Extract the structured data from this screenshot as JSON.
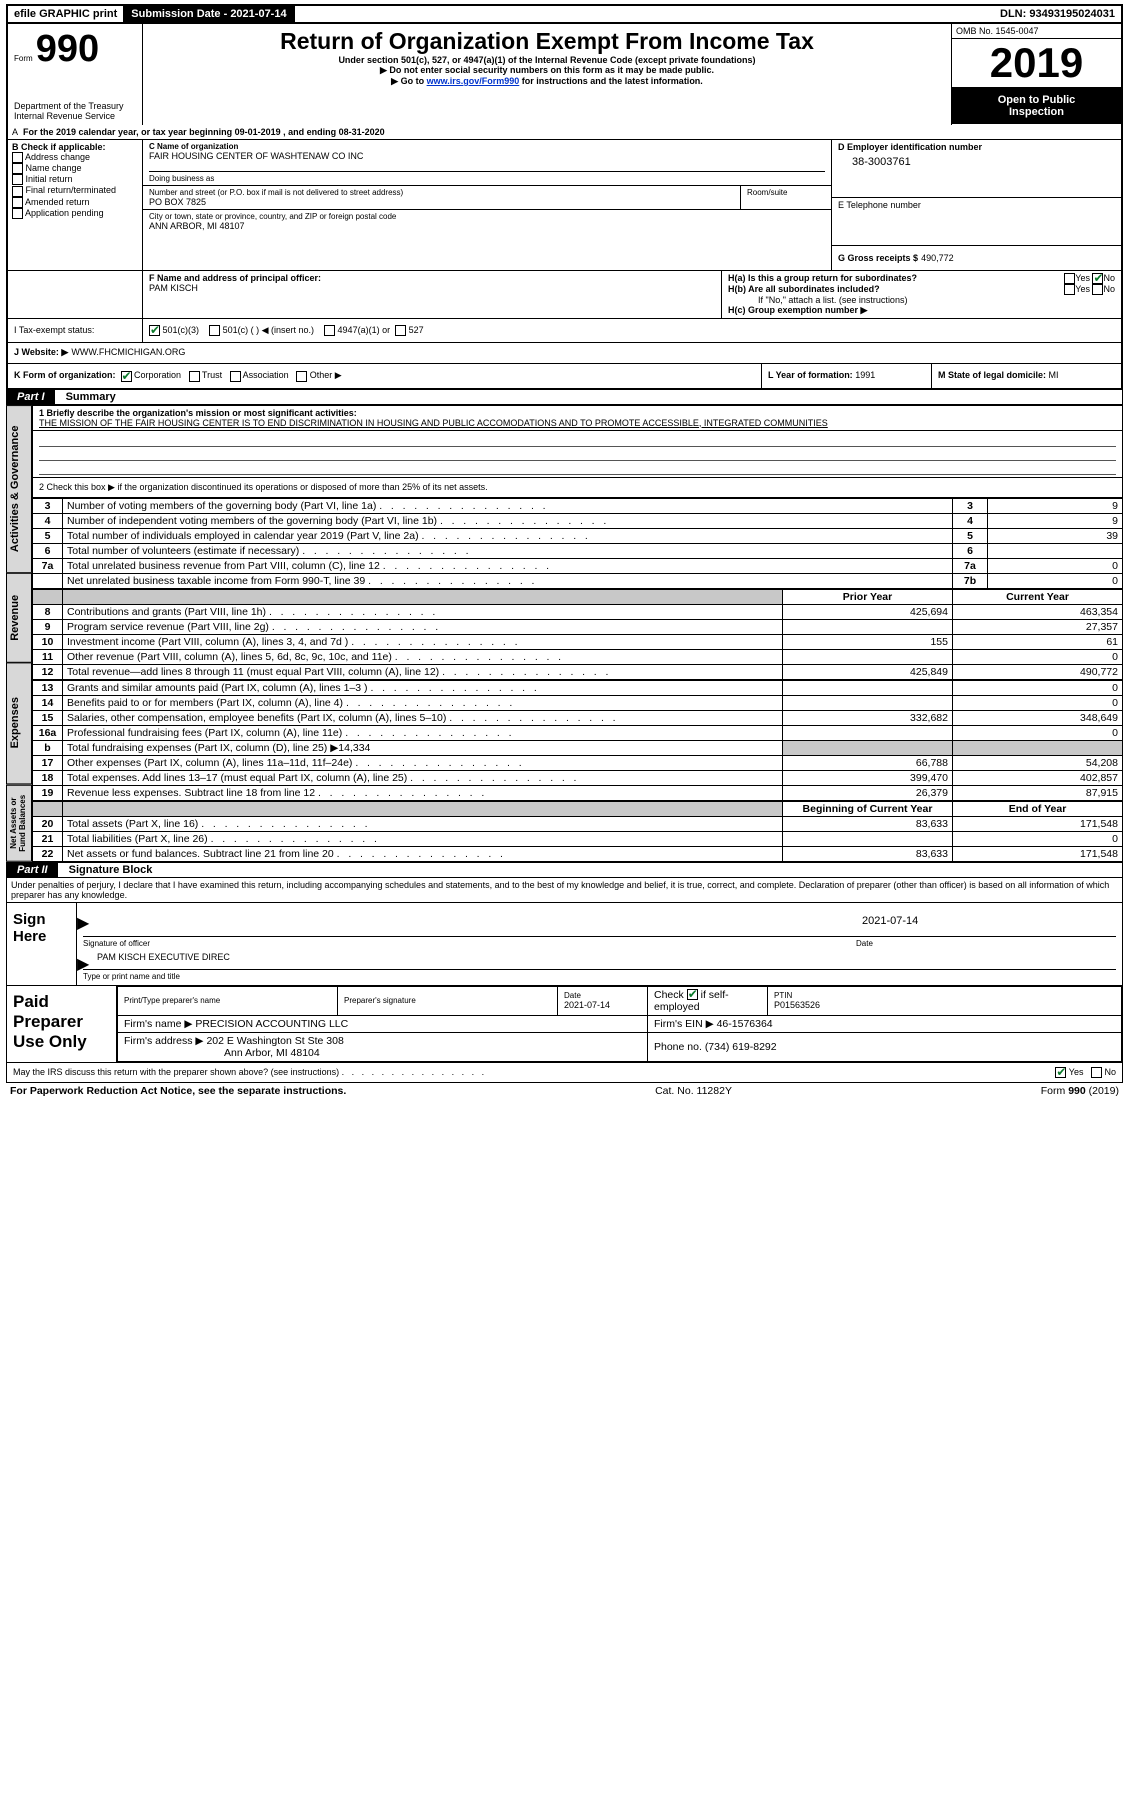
{
  "header_bar": {
    "efile": "efile GRAPHIC print",
    "submission": "Submission Date - 2021-07-14",
    "dln": "DLN: 93493195024031"
  },
  "title_block": {
    "form_label": "Form",
    "form_number": "990",
    "dept1": "Department of the Treasury",
    "dept2": "Internal Revenue Service",
    "main_title": "Return of Organization Exempt From Income Tax",
    "sub1": "Under section 501(c), 527, or 4947(a)(1) of the Internal Revenue Code (except private foundations)",
    "sub2": "▶ Do not enter social security numbers on this form as it may be made public.",
    "sub3_pre": "▶ Go to ",
    "sub3_link": "www.irs.gov/Form990",
    "sub3_post": " for instructions and the latest information.",
    "omb": "OMB No. 1545-0047",
    "year": "2019",
    "open_inspect1": "Open to Public",
    "open_inspect2": "Inspection"
  },
  "line_a": "For the 2019 calendar year, or tax year beginning 09-01-2019   , and ending 08-31-2020",
  "boxB": {
    "label": "B Check if applicable:",
    "items": [
      "Address change",
      "Name change",
      "Initial return",
      "Final return/terminated",
      "Amended return",
      "Application pending"
    ]
  },
  "boxC": {
    "name_label": "C Name of organization",
    "name": "FAIR HOUSING CENTER OF WASHTENAW CO INC",
    "dba_label": "Doing business as",
    "street_label": "Number and street (or P.O. box if mail is not delivered to street address)",
    "room_label": "Room/suite",
    "street": "PO BOX 7825",
    "city_label": "City or town, state or province, country, and ZIP or foreign postal code",
    "city": "ANN ARBOR, MI  48107"
  },
  "boxD": {
    "label": "D Employer identification number",
    "value": "38-3003761"
  },
  "boxE": {
    "label": "E Telephone number",
    "value": ""
  },
  "boxG": {
    "label": "G Gross receipts $",
    "value": "490,772"
  },
  "boxF": {
    "label": "F  Name and address of principal officer:",
    "name": "PAM KISCH"
  },
  "boxH": {
    "ha": "H(a)  Is this a group return for subordinates?",
    "hb": "H(b)  Are all subordinates included?",
    "hb_note": "If \"No,\" attach a list. (see instructions)",
    "hc": "H(c)  Group exemption number ▶",
    "yes": "Yes",
    "no": "No"
  },
  "boxI": {
    "label": "I    Tax-exempt status:",
    "c3": "501(c)(3)",
    "c_blank": "501(c) (   ) ◀ (insert no.)",
    "a4947": "4947(a)(1) or",
    "s527": "527"
  },
  "boxJ": {
    "label": "J    Website: ▶",
    "value": "WWW.FHCMICHIGAN.ORG"
  },
  "boxK": {
    "label": "K Form of organization:",
    "corp": "Corporation",
    "trust": "Trust",
    "assoc": "Association",
    "other": "Other ▶"
  },
  "boxL": {
    "label": "L Year of formation:",
    "value": "1991"
  },
  "boxM": {
    "label": "M State of legal domicile:",
    "value": "MI"
  },
  "part1": {
    "label": "Part I",
    "title": "Summary",
    "line1_label": "1  Briefly describe the organization's mission or most significant activities:",
    "mission": "THE MISSION OF THE FAIR HOUSING CENTER IS TO END DISCRIMINATION IN HOUSING AND PUBLIC ACCOMODATIONS AND TO PROMOTE ACCESSIBLE, INTEGRATED COMMUNITIES",
    "line2": "2    Check this box ▶       if the organization discontinued its operations or disposed of more than 25% of its net assets.",
    "rows_gov": [
      {
        "n": "3",
        "t": "Number of voting members of the governing body (Part VI, line 1a)",
        "box": "3",
        "v": "9"
      },
      {
        "n": "4",
        "t": "Number of independent voting members of the governing body (Part VI, line 1b)",
        "box": "4",
        "v": "9"
      },
      {
        "n": "5",
        "t": "Total number of individuals employed in calendar year 2019 (Part V, line 2a)",
        "box": "5",
        "v": "39"
      },
      {
        "n": "6",
        "t": "Total number of volunteers (estimate if necessary)",
        "box": "6",
        "v": ""
      },
      {
        "n": "7a",
        "t": "Total unrelated business revenue from Part VIII, column (C), line 12",
        "box": "7a",
        "v": "0"
      },
      {
        "n": "",
        "t": "Net unrelated business taxable income from Form 990-T, line 39",
        "box": "7b",
        "v": "0"
      }
    ],
    "col_prior": "Prior Year",
    "col_current": "Current Year",
    "rows_rev": [
      {
        "n": "8",
        "t": "Contributions and grants (Part VIII, line 1h)",
        "p": "425,694",
        "c": "463,354"
      },
      {
        "n": "9",
        "t": "Program service revenue (Part VIII, line 2g)",
        "p": "",
        "c": "27,357"
      },
      {
        "n": "10",
        "t": "Investment income (Part VIII, column (A), lines 3, 4, and 7d )",
        "p": "155",
        "c": "61"
      },
      {
        "n": "11",
        "t": "Other revenue (Part VIII, column (A), lines 5, 6d, 8c, 9c, 10c, and 11e)",
        "p": "",
        "c": "0"
      },
      {
        "n": "12",
        "t": "Total revenue—add lines 8 through 11 (must equal Part VIII, column (A), line 12)",
        "p": "425,849",
        "c": "490,772"
      }
    ],
    "rows_exp": [
      {
        "n": "13",
        "t": "Grants and similar amounts paid (Part IX, column (A), lines 1–3 )",
        "p": "",
        "c": "0"
      },
      {
        "n": "14",
        "t": "Benefits paid to or for members (Part IX, column (A), line 4)",
        "p": "",
        "c": "0"
      },
      {
        "n": "15",
        "t": "Salaries, other compensation, employee benefits (Part IX, column (A), lines 5–10)",
        "p": "332,682",
        "c": "348,649"
      },
      {
        "n": "16a",
        "t": "Professional fundraising fees (Part IX, column (A), line 11e)",
        "p": "",
        "c": "0"
      },
      {
        "n": "b",
        "t": "Total fundraising expenses (Part IX, column (D), line 25) ▶14,334",
        "p": "SHADE",
        "c": "SHADE"
      },
      {
        "n": "17",
        "t": "Other expenses (Part IX, column (A), lines 11a–11d, 11f–24e)",
        "p": "66,788",
        "c": "54,208"
      },
      {
        "n": "18",
        "t": "Total expenses. Add lines 13–17 (must equal Part IX, column (A), line 25)",
        "p": "399,470",
        "c": "402,857"
      },
      {
        "n": "19",
        "t": "Revenue less expenses. Subtract line 18 from line 12",
        "p": "26,379",
        "c": "87,915"
      }
    ],
    "col_begin": "Beginning of Current Year",
    "col_end": "End of Year",
    "rows_net": [
      {
        "n": "20",
        "t": "Total assets (Part X, line 16)",
        "p": "83,633",
        "c": "171,548"
      },
      {
        "n": "21",
        "t": "Total liabilities (Part X, line 26)",
        "p": "",
        "c": "0"
      },
      {
        "n": "22",
        "t": "Net assets or fund balances. Subtract line 21 from line 20",
        "p": "83,633",
        "c": "171,548"
      }
    ],
    "tab_gov": "Activities & Governance",
    "tab_rev": "Revenue",
    "tab_exp": "Expenses",
    "tab_net": "Net Assets or Fund Balances"
  },
  "part2": {
    "label": "Part II",
    "title": "Signature Block",
    "decl": "Under penalties of perjury, I declare that I have examined this return, including accompanying schedules and statements, and to the best of my knowledge and belief, it is true, correct, and complete. Declaration of preparer (other than officer) is based on all information of which preparer has any knowledge.",
    "sign_here": "Sign Here",
    "sig_officer": "Signature of officer",
    "sig_date": "Date",
    "sig_date_val": "2021-07-14",
    "name_title": "PAM KISCH  EXECUTIVE DIREC",
    "type_label": "Type or print name and title",
    "paid_prep": "Paid Preparer Use Only",
    "prep_name_label": "Print/Type preparer's name",
    "prep_sig_label": "Preparer's signature",
    "prep_date_label": "Date",
    "prep_date": "2021-07-14",
    "check_self": "Check        if self-employed",
    "ptin_label": "PTIN",
    "ptin": "P01563526",
    "firm_name_label": "Firm's name     ▶",
    "firm_name": "PRECISION ACCOUNTING LLC",
    "firm_ein_label": "Firm's EIN ▶",
    "firm_ein": "46-1576364",
    "firm_addr_label": "Firm's address ▶",
    "firm_addr1": "202 E Washington St Ste 308",
    "firm_addr2": "Ann Arbor, MI  48104",
    "phone_label": "Phone no.",
    "phone": "(734) 619-8292",
    "discuss": "May the IRS discuss this return with the preparer shown above? (see instructions)",
    "yes": "Yes",
    "no": "No"
  },
  "footer": {
    "pra": "For Paperwork Reduction Act Notice, see the separate instructions.",
    "cat": "Cat. No. 11282Y",
    "form": "Form 990 (2019)"
  },
  "colors": {
    "link": "#0033cc",
    "shade": "#c8c8c8",
    "tab_bg": "#d8d8d8",
    "green_check": "#0a7a2a"
  }
}
